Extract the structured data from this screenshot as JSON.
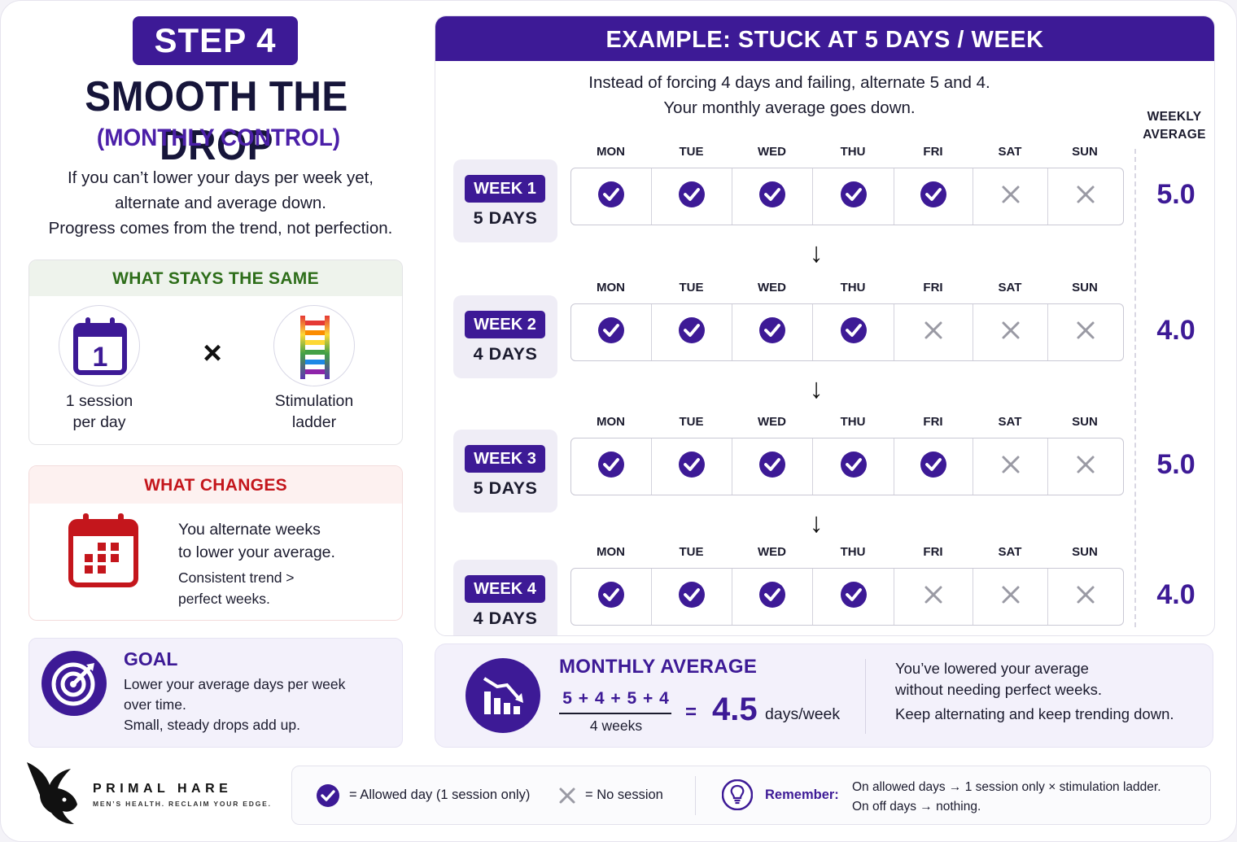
{
  "header": {
    "step_label": "STEP 4",
    "title": "SMOOTH THE DROP",
    "subtitle": "(MONTHLY CONTROL)",
    "intro_lines": [
      "If you can’t lower your days per week yet,",
      "alternate and average down.",
      "Progress comes from the trend, not perfection."
    ]
  },
  "what_stays": {
    "heading": "WHAT STAYS THE SAME",
    "item1_icon": "calendar-one-icon",
    "item1_icon_text": "1",
    "item1_lines": [
      "1 session",
      "per day"
    ],
    "operator": "×",
    "item2_icon": "rainbow-ladder-icon",
    "item2_lines": [
      "Stimulation",
      "ladder"
    ]
  },
  "what_changes": {
    "heading": "WHAT CHANGES",
    "icon": "calendar-grid-icon",
    "main_lines": [
      "You alternate weeks",
      "to lower your average."
    ],
    "sub_lines": [
      "Consistent trend >",
      "perfect weeks."
    ]
  },
  "goal": {
    "icon": "target-icon",
    "heading": "GOAL",
    "lines": [
      "Lower your average days per week",
      "over time.",
      "Small, steady drops add up."
    ]
  },
  "example": {
    "heading": "EXAMPLE: STUCK AT 5 DAYS / WEEK",
    "intro_lines": [
      "Instead of forcing 4 days and failing, alternate 5 and 4.",
      "Your monthly average goes down."
    ],
    "weekly_average_label": [
      "WEEKLY",
      "AVERAGE"
    ],
    "day_names": [
      "MON",
      "TUE",
      "WED",
      "THU",
      "FRI",
      "SAT",
      "SUN"
    ],
    "arrow": "↓",
    "weeks": [
      {
        "label": "WEEK 1",
        "days_text": "5 DAYS",
        "average": "5.0",
        "allowed": [
          true,
          true,
          true,
          true,
          true,
          false,
          false
        ]
      },
      {
        "label": "WEEK 2",
        "days_text": "4 DAYS",
        "average": "4.0",
        "allowed": [
          true,
          true,
          true,
          true,
          false,
          false,
          false
        ]
      },
      {
        "label": "WEEK 3",
        "days_text": "5 DAYS",
        "average": "5.0",
        "allowed": [
          true,
          true,
          true,
          true,
          true,
          false,
          false
        ]
      },
      {
        "label": "WEEK 4",
        "days_text": "4 DAYS",
        "average": "4.0",
        "allowed": [
          true,
          true,
          true,
          true,
          false,
          false,
          false
        ]
      }
    ]
  },
  "monthly": {
    "icon": "declining-chart-icon",
    "heading": "MONTHLY AVERAGE",
    "numerator": "5 + 4 + 5 + 4",
    "denominator": "4 weeks",
    "equals": "=",
    "result": "4.5",
    "unit": "days/week",
    "text_lines": [
      "You’ve lowered your average",
      "without needing perfect weeks."
    ],
    "text_last": "Keep alternating and keep trending down."
  },
  "brand": {
    "logo_icon": "hare-logo-icon",
    "name": "PRIMAL HARE",
    "tagline": "MEN’S HEALTH. RECLAIM YOUR EDGE."
  },
  "legend": {
    "check_icon": "check-circle-icon",
    "allowed_text": "=  Allowed day (1 session only)",
    "cross_icon": "cross-icon",
    "no_session_text": "=  No session",
    "bulb_icon": "lightbulb-icon",
    "remember_label": "Remember:",
    "remember_lines": [
      "On allowed days → 1 session only × stimulation ladder.",
      "On off days → nothing."
    ]
  },
  "colors": {
    "primary": "#3d1a96",
    "green": "#2e6e1a",
    "red": "#c4161c",
    "cross_gray": "#9a9aa4"
  }
}
